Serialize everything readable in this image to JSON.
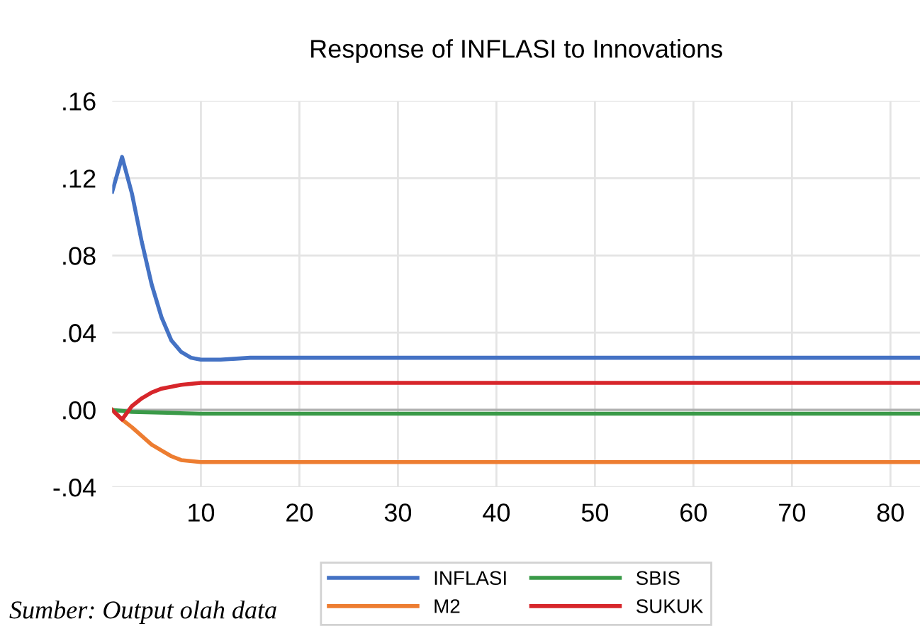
{
  "chart_data": {
    "type": "line",
    "title": "Response of INFLASI to Innovations",
    "series": [
      {
        "name": "INFLASI",
        "color": "#4472c4",
        "x": [
          1,
          2,
          3,
          4,
          5,
          6,
          7,
          8,
          9,
          10,
          11,
          12,
          15,
          83
        ],
        "values": [
          0.113,
          0.131,
          0.112,
          0.087,
          0.065,
          0.048,
          0.036,
          0.03,
          0.027,
          0.026,
          0.026,
          0.026,
          0.027,
          0.027
        ]
      },
      {
        "name": "M2",
        "color": "#ed7d31",
        "x": [
          1,
          2,
          3,
          4,
          5,
          6,
          7,
          8,
          10,
          83
        ],
        "values": [
          0,
          -0.005,
          -0.009,
          -0.0135,
          -0.018,
          -0.021,
          -0.024,
          -0.026,
          -0.027,
          -0.027
        ]
      },
      {
        "name": "SBIS",
        "color": "#3a9a48",
        "x": [
          1,
          3,
          10,
          83
        ],
        "values": [
          0,
          -0.001,
          -0.002,
          -0.002
        ]
      },
      {
        "name": "SUKUK",
        "color": "#d7262b",
        "x": [
          1,
          2,
          3,
          4,
          5,
          6,
          8,
          10,
          83
        ],
        "values": [
          0,
          -0.005,
          0.002,
          0.006,
          0.009,
          0.011,
          0.013,
          0.014,
          0.014
        ]
      }
    ],
    "xlim": [
      1,
      83
    ],
    "xticks": [
      10,
      20,
      30,
      40,
      50,
      60,
      70,
      80
    ],
    "ylim": [
      -0.04,
      0.16
    ],
    "yticks": [
      {
        "value": -0.04,
        "label": "-.04"
      },
      {
        "value": 0,
        "label": ".00"
      },
      {
        "value": 0.04,
        "label": ".04"
      },
      {
        "value": 0.08,
        "label": ".08"
      },
      {
        "value": 0.12,
        "label": ".12"
      },
      {
        "value": 0.16,
        "label": ".16"
      }
    ],
    "ref_lines": [
      {
        "axis": "y",
        "value": 0,
        "color": "#b0b0b0"
      }
    ],
    "grid": true,
    "legend": "bottom",
    "annotations": [
      "Sumber: Output olah data"
    ]
  }
}
